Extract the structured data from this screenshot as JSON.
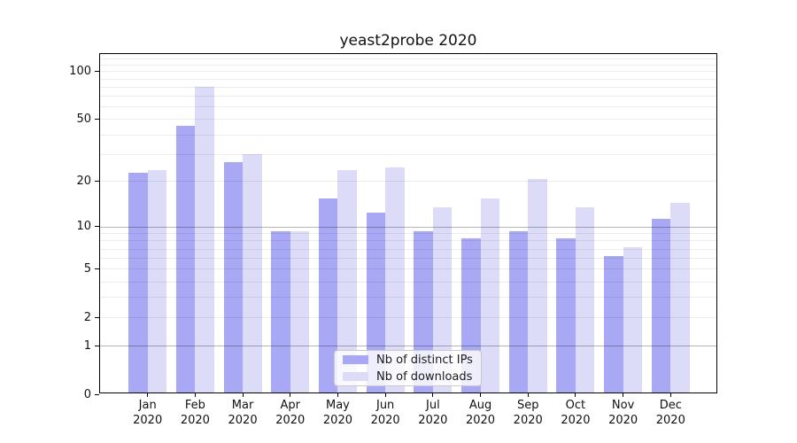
{
  "chart_data": {
    "type": "bar",
    "title": "yeast2probe 2020",
    "year_label": "2020",
    "categories": [
      "Jan",
      "Feb",
      "Mar",
      "Apr",
      "May",
      "Jun",
      "Jul",
      "Aug",
      "Sep",
      "Oct",
      "Nov",
      "Dec"
    ],
    "series": [
      {
        "name": "Nb of distinct IPs",
        "color": "#a8a8f5",
        "values": [
          22,
          44,
          26,
          9,
          15,
          12,
          9,
          8,
          9,
          8,
          6,
          11
        ]
      },
      {
        "name": "Nb of downloads",
        "color": "#dcdcf9",
        "values": [
          23,
          78,
          29,
          9,
          23,
          24,
          13,
          15,
          20,
          13,
          7,
          14
        ]
      }
    ],
    "xlabel": "",
    "ylabel": "",
    "yscale": "log1p",
    "ylim": [
      0,
      128
    ],
    "yticks": [
      0,
      1,
      2,
      5,
      10,
      20,
      50,
      100
    ],
    "ytick_labels": [
      "0",
      "1",
      "2",
      "5",
      "10",
      "20",
      "50",
      "100"
    ],
    "grid": {
      "on": true,
      "drawn_above_bars": true,
      "major_values": [
        1,
        10
      ],
      "minor_values": [
        2,
        3,
        4,
        5,
        6,
        7,
        8,
        9,
        20,
        30,
        40,
        50,
        60,
        70,
        80,
        90,
        100,
        110,
        120
      ],
      "major_color": "rgba(0,0,0,0.29)",
      "minor_color": "rgba(0,0,0,0.075)"
    },
    "legend": {
      "position": "lower-center",
      "labels": [
        "Nb of distinct IPs",
        "Nb of downloads"
      ]
    }
  }
}
